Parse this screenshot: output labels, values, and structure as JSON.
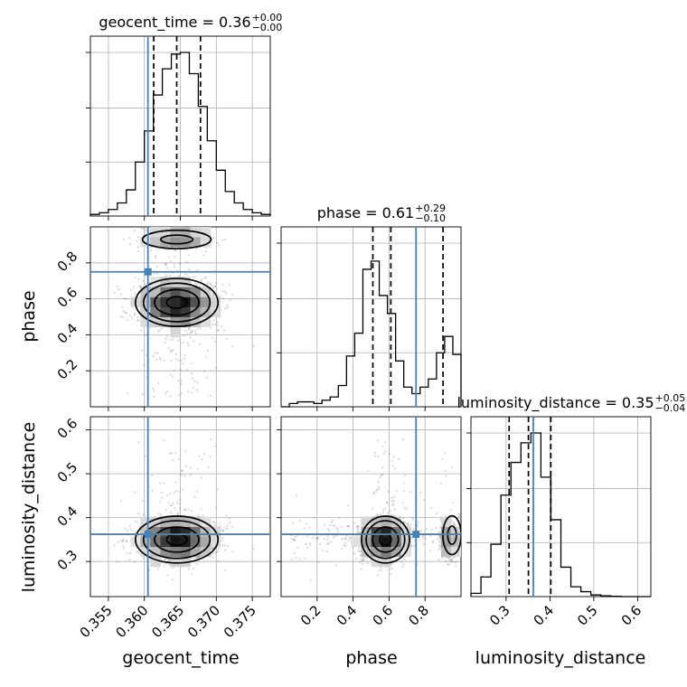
{
  "chart_data": {
    "type": "scatter",
    "parameters": [
      "geocent_time",
      "phase",
      "luminosity_distance"
    ],
    "truths": [
      0.3605,
      0.75,
      0.362
    ],
    "ranges": [
      [
        0.3525,
        0.3775
      ],
      [
        0.0,
        1.0
      ],
      [
        0.22,
        0.63
      ]
    ],
    "ticks": [
      [
        "0.355",
        "0.360",
        "0.365",
        "0.370",
        "0.375"
      ],
      [
        "0.2",
        "0.4",
        "0.6",
        "0.8"
      ],
      [
        "0.3",
        "0.4",
        "0.5",
        "0.6"
      ]
    ],
    "titles": [
      {
        "param": "geocent_time",
        "value": "0.36",
        "plus": "+0.00",
        "minus": "−0.00"
      },
      {
        "param": "phase",
        "value": "0.61",
        "plus": "+0.29",
        "minus": "−0.10"
      },
      {
        "param": "luminosity_distance",
        "value": "0.35",
        "plus": "+0.05",
        "minus": "−0.04"
      }
    ],
    "quantiles": [
      [
        0.3613,
        0.3645,
        0.3678
      ],
      [
        0.51,
        0.61,
        0.9
      ],
      [
        0.307,
        0.351,
        0.402
      ]
    ],
    "histograms": [
      {
        "edges_range": [
          0.3525,
          0.3775
        ],
        "counts": [
          0.01,
          0.02,
          0.04,
          0.08,
          0.16,
          0.33,
          0.52,
          0.74,
          0.9,
          0.99,
          1.0,
          0.87,
          0.67,
          0.46,
          0.28,
          0.15,
          0.08,
          0.04,
          0.02,
          0.01
        ]
      },
      {
        "edges_range": [
          0.0,
          1.0
        ],
        "counts": [
          0.0,
          0.02,
          0.03,
          0.03,
          0.02,
          0.04,
          0.06,
          0.13,
          0.31,
          0.45,
          0.84,
          0.89,
          0.68,
          0.57,
          0.28,
          0.12,
          0.08,
          0.12,
          0.17,
          0.33,
          0.43,
          0.32
        ]
      },
      {
        "edges_range": [
          0.22,
          0.63
        ],
        "counts": [
          0.02,
          0.12,
          0.32,
          0.62,
          0.82,
          0.94,
          1.0,
          0.73,
          0.47,
          0.18,
          0.06,
          0.03,
          0.01,
          0.005,
          0.002,
          0.0,
          0.0,
          0.0
        ]
      }
    ],
    "joint_modes": [
      {
        "x": "geocent_time",
        "y": "phase",
        "peaks": [
          [
            0.3645,
            0.58
          ],
          [
            0.3645,
            0.93
          ]
        ]
      },
      {
        "x": "geocent_time",
        "y": "luminosity_distance",
        "peaks": [
          [
            0.3645,
            0.35
          ]
        ]
      },
      {
        "x": "phase",
        "y": "luminosity_distance",
        "peaks": [
          [
            0.58,
            0.35
          ],
          [
            0.95,
            0.36
          ]
        ]
      }
    ]
  }
}
